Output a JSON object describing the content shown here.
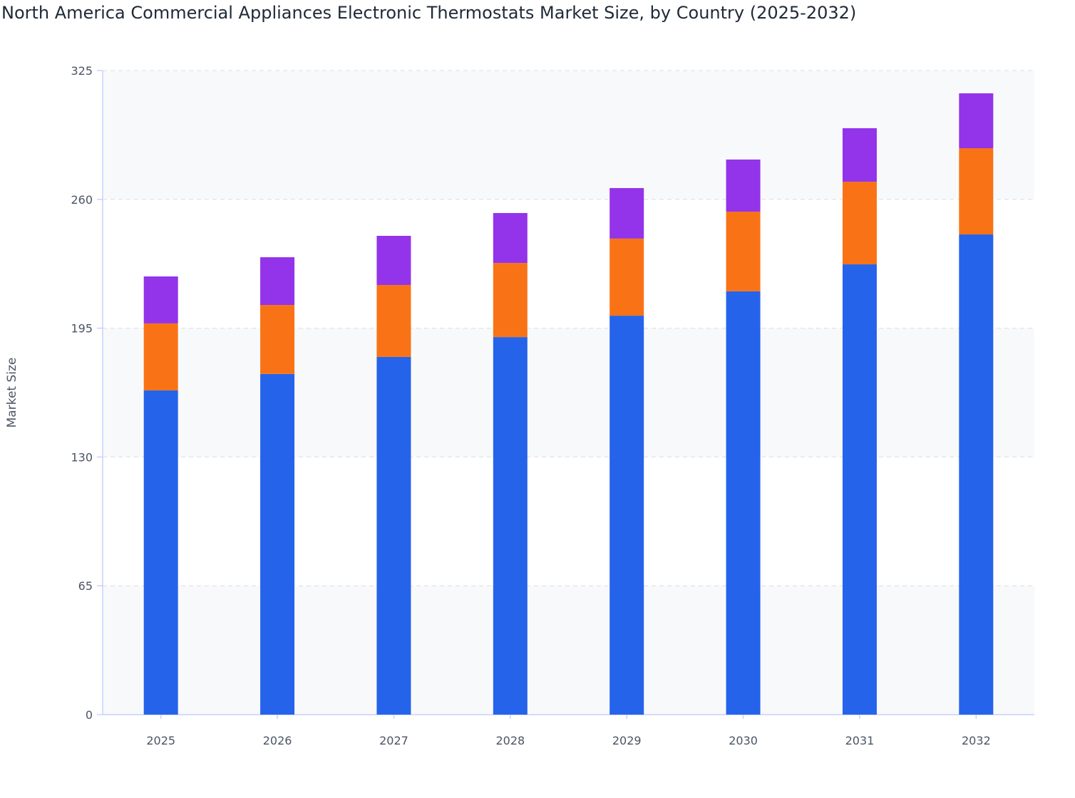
{
  "chart_data": {
    "type": "bar",
    "stacked": true,
    "title": "North America Commercial Appliances Electronic Thermostats Market Size, by Country (2025-2032)",
    "xlabel": "",
    "ylabel": "Market Size",
    "ylim": [
      0,
      325
    ],
    "yticks": [
      0,
      65,
      130,
      195,
      260,
      325
    ],
    "grid": true,
    "legend": "none",
    "categories": [
      "2025",
      "2026",
      "2027",
      "2028",
      "2029",
      "2030",
      "2031",
      "2032"
    ],
    "series": [
      {
        "color": "#2563eb",
        "values": [
          163.6,
          171.9,
          180.5,
          190.5,
          201.3,
          213.6,
          227.2,
          242.3
        ]
      },
      {
        "color": "#f97316",
        "values": [
          33.8,
          34.8,
          36.3,
          37.4,
          38.9,
          40.2,
          41.7,
          43.5
        ]
      },
      {
        "color": "#9333ea",
        "values": [
          23.7,
          24.1,
          24.8,
          25.2,
          25.5,
          26.3,
          27.0,
          27.7
        ]
      }
    ]
  }
}
